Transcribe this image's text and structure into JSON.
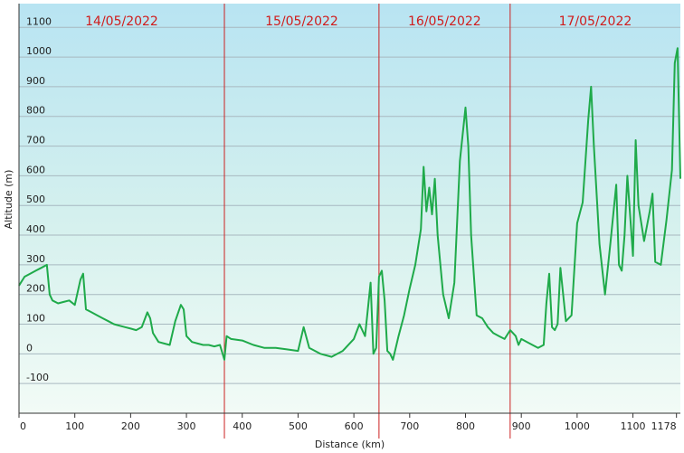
{
  "chart_data": {
    "type": "line",
    "title": "",
    "xlabel": "Distance  (km)",
    "ylabel": "Altitude (m)",
    "xlim": [
      0,
      1185
    ],
    "ylim": [
      -200,
      1180
    ],
    "x_ticks": [
      0,
      100,
      200,
      300,
      400,
      500,
      600,
      700,
      800,
      900,
      1000,
      1100,
      1178
    ],
    "y_ticks": [
      -100,
      0,
      100,
      200,
      300,
      400,
      500,
      600,
      700,
      800,
      900,
      1000,
      1100
    ],
    "grid": true,
    "legend": "none",
    "line_color": "#1faa4a",
    "divider_color": "#cc2222",
    "days": [
      {
        "label": "14/05/2022",
        "start": 0,
        "end": 368
      },
      {
        "label": "15/05/2022",
        "start": 368,
        "end": 645
      },
      {
        "label": "16/05/2022",
        "start": 645,
        "end": 880
      },
      {
        "label": "17/05/2022",
        "start": 880,
        "end": 1185
      }
    ],
    "dividers": [
      368,
      645,
      880
    ],
    "series": [
      {
        "x": [
          0,
          10,
          20,
          30,
          40,
          50,
          55,
          60,
          70,
          80,
          90,
          100,
          110,
          115,
          120,
          130,
          140,
          150,
          160,
          170,
          180,
          190,
          200,
          210,
          220,
          230,
          235,
          240,
          250,
          260,
          270,
          280,
          290,
          295,
          300,
          310,
          320,
          330,
          340,
          350,
          360,
          368,
          372,
          380,
          400,
          420,
          440,
          460,
          480,
          500,
          510,
          520,
          540,
          560,
          580,
          600,
          610,
          620,
          630,
          635,
          640,
          645,
          650,
          655,
          660,
          665,
          670,
          680,
          690,
          700,
          710,
          720,
          725,
          730,
          735,
          740,
          745,
          750,
          760,
          770,
          780,
          790,
          800,
          805,
          810,
          820,
          830,
          840,
          850,
          860,
          870,
          880,
          890,
          895,
          900,
          910,
          920,
          930,
          940,
          945,
          950,
          955,
          960,
          965,
          970,
          980,
          990,
          1000,
          1010,
          1020,
          1025,
          1030,
          1040,
          1050,
          1060,
          1070,
          1075,
          1080,
          1085,
          1090,
          1100,
          1105,
          1110,
          1120,
          1130,
          1135,
          1140,
          1150,
          1160,
          1170,
          1175,
          1180,
          1185
        ],
        "y": [
          230,
          260,
          270,
          280,
          290,
          300,
          200,
          180,
          170,
          175,
          180,
          165,
          250,
          270,
          150,
          140,
          130,
          120,
          110,
          100,
          95,
          90,
          85,
          80,
          90,
          140,
          120,
          70,
          40,
          35,
          30,
          110,
          165,
          150,
          60,
          40,
          35,
          30,
          30,
          25,
          30,
          -20,
          60,
          50,
          45,
          30,
          20,
          20,
          15,
          10,
          90,
          20,
          0,
          -10,
          10,
          50,
          100,
          60,
          240,
          0,
          20,
          260,
          280,
          180,
          10,
          0,
          -20,
          60,
          130,
          220,
          300,
          420,
          630,
          480,
          560,
          470,
          590,
          400,
          200,
          120,
          240,
          650,
          830,
          700,
          400,
          130,
          120,
          90,
          70,
          60,
          50,
          80,
          60,
          30,
          50,
          40,
          30,
          20,
          30,
          170,
          270,
          90,
          80,
          100,
          290,
          110,
          130,
          440,
          510,
          790,
          900,
          700,
          370,
          200,
          380,
          570,
          300,
          280,
          400,
          600,
          330,
          720,
          500,
          380,
          480,
          540,
          310,
          300,
          450,
          620,
          980,
          1030,
          590
        ]
      }
    ]
  }
}
